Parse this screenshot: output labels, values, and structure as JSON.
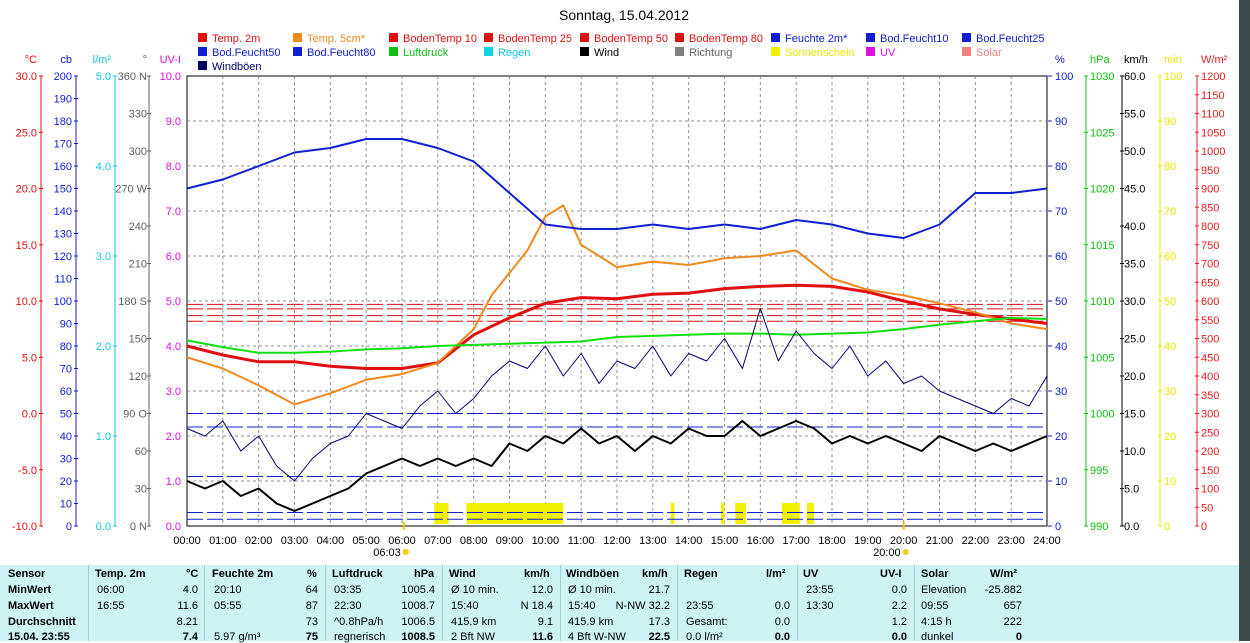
{
  "title": "Sonntag, 15.04.2012",
  "legend": [
    {
      "label": "Temp. 2m",
      "color": "#e01010"
    },
    {
      "label": "Temp. 5cm*",
      "color": "#f08a20"
    },
    {
      "label": "BodenTemp 10",
      "color": "#e01010"
    },
    {
      "label": "BodenTemp 25",
      "color": "#e01010"
    },
    {
      "label": "BodenTemp 50",
      "color": "#e01010"
    },
    {
      "label": "BodenTemp 80",
      "color": "#e01010"
    },
    {
      "label": "Feuchte 2m*",
      "color": "#1020d0"
    },
    {
      "label": "Bod.Feucht10",
      "color": "#1020d0"
    },
    {
      "label": "Bod.Feucht25",
      "color": "#1020d0"
    },
    {
      "label": "Bod.Feucht50",
      "color": "#1020d0"
    },
    {
      "label": "Bod.Feucht80",
      "color": "#1020d0"
    },
    {
      "label": "Luftdruck",
      "color": "#10c010"
    },
    {
      "label": "Regen",
      "color": "#10d8e0"
    },
    {
      "label": "Wind",
      "color": "#000000"
    },
    {
      "label": "Richtung",
      "color": "#808080"
    },
    {
      "label": "Sonnenschein",
      "color": "#f0f000"
    },
    {
      "label": "UV",
      "color": "#e010e0"
    },
    {
      "label": "Solar",
      "color": "#f08080"
    },
    {
      "label": "Windböen",
      "color": "#000060"
    }
  ],
  "axes": {
    "celsius": {
      "unit": "°C",
      "color": "#e01010",
      "ticks": [
        "30.0",
        "25.0",
        "20.0",
        "15.0",
        "10.0",
        "5.0",
        "0.0",
        "-5.0",
        "-10.0"
      ]
    },
    "cb": {
      "unit": "cb",
      "color": "#1020d0",
      "ticks": [
        "200",
        "190",
        "180",
        "170",
        "160",
        "150",
        "140",
        "130",
        "120",
        "110",
        "100",
        "90",
        "80",
        "70",
        "60",
        "50",
        "40",
        "30",
        "20",
        "10",
        "0"
      ]
    },
    "rain": {
      "unit": "l/m²",
      "color": "#10c8e0",
      "ticks": [
        "5.0",
        "4.0",
        "3.0",
        "2.0",
        "1.0",
        "0.0"
      ]
    },
    "direction": {
      "unit": "°",
      "color": "#606060",
      "ticks": [
        "360 N",
        "330",
        "300",
        "270 W",
        "240",
        "210",
        "180 S",
        "150",
        "120",
        "90  O",
        "60",
        "30",
        "0  N"
      ]
    },
    "uv": {
      "unit": "UV-I",
      "color": "#e010e0",
      "ticks": [
        "10.0",
        "9.0",
        "8.0",
        "7.0",
        "6.0",
        "5.0",
        "4.0",
        "3.0",
        "2.0",
        "1.0",
        "0.0"
      ]
    },
    "humidity": {
      "unit": "%",
      "color": "#1020d0",
      "ticks": [
        "100",
        "90",
        "80",
        "70",
        "60",
        "50",
        "40",
        "30",
        "20",
        "10",
        "0"
      ]
    },
    "pressure": {
      "unit": "hPa",
      "color": "#10c010",
      "ticks": [
        "1030",
        "1025",
        "1020",
        "1015",
        "1010",
        "1005",
        "1000",
        "995",
        "990"
      ]
    },
    "wind": {
      "unit": "km/h",
      "color": "#000000",
      "ticks": [
        "60.0",
        "55.0",
        "50.0",
        "45.0",
        "40.0",
        "35.0",
        "30.0",
        "25.0",
        "20.0",
        "15.0",
        "10.0",
        "5.0",
        "0.0"
      ]
    },
    "sun": {
      "unit": "min",
      "color": "#e8e800",
      "ticks": [
        "100",
        "90",
        "80",
        "70",
        "60",
        "50",
        "40",
        "30",
        "20",
        "10",
        "0"
      ]
    },
    "solar": {
      "unit": "W/m²",
      "color": "#e02020",
      "ticks": [
        "1200",
        "1150",
        "1100",
        "1050",
        "1000",
        "950",
        "900",
        "850",
        "800",
        "750",
        "700",
        "650",
        "600",
        "550",
        "500",
        "450",
        "400",
        "350",
        "300",
        "250",
        "200",
        "150",
        "100",
        "50",
        "0"
      ]
    }
  },
  "x_ticks": [
    "00:00",
    "01:00",
    "02:00",
    "03:00",
    "04:00",
    "05:00",
    "06:00",
    "07:00",
    "08:00",
    "09:00",
    "10:00",
    "11:00",
    "12:00",
    "13:00",
    "14:00",
    "15:00",
    "16:00",
    "17:00",
    "18:00",
    "19:00",
    "20:00",
    "21:00",
    "22:00",
    "23:00",
    "24:00"
  ],
  "sunrise": "06:03",
  "sunset": "20:00",
  "chart_data": {
    "type": "line",
    "x_unit": "hour",
    "series": [
      {
        "name": "Temp. 2m",
        "axis": "celsius",
        "x": [
          0,
          1,
          2,
          3,
          4,
          5,
          5.5,
          6,
          7,
          8,
          9,
          10,
          11,
          12,
          13,
          14,
          15,
          16,
          17,
          18,
          19,
          20,
          21,
          22,
          23,
          24
        ],
        "y": [
          6.0,
          5.2,
          4.6,
          4.6,
          4.2,
          4.0,
          4.0,
          4.0,
          4.5,
          7.0,
          8.5,
          9.8,
          10.3,
          10.2,
          10.6,
          10.7,
          11.1,
          11.3,
          11.4,
          11.3,
          10.8,
          10.0,
          9.3,
          8.8,
          8.4,
          8.0
        ]
      },
      {
        "name": "Temp. 5cm*",
        "axis": "celsius",
        "x": [
          0,
          1,
          2,
          3,
          4,
          5,
          6,
          7,
          8,
          8.5,
          9,
          9.5,
          10,
          10.5,
          11,
          12,
          13,
          14,
          15,
          16,
          17,
          18,
          19,
          20,
          21,
          22,
          23,
          24
        ],
        "y": [
          5.0,
          4.0,
          2.5,
          0.8,
          1.8,
          3.0,
          3.5,
          4.5,
          7.5,
          10.5,
          12.5,
          14.5,
          17.5,
          18.5,
          15.0,
          13.0,
          13.5,
          13.2,
          13.8,
          14.0,
          14.5,
          12.0,
          11.0,
          10.5,
          9.8,
          9.0,
          8.0,
          7.5
        ]
      },
      {
        "name": "Feuchte 2m*",
        "axis": "humidity",
        "x": [
          0,
          1,
          2,
          3,
          4,
          5,
          6,
          7,
          8,
          9,
          10,
          11,
          12,
          13,
          14,
          15,
          16,
          17,
          18,
          19,
          20,
          21,
          22,
          23,
          24
        ],
        "y": [
          75,
          77,
          80,
          83,
          84,
          86,
          86,
          84,
          81,
          74,
          67,
          66,
          66,
          67,
          66,
          67,
          66,
          68,
          67,
          65,
          64,
          67,
          74,
          74,
          75
        ]
      },
      {
        "name": "Luftdruck",
        "axis": "pressure",
        "x": [
          0,
          1,
          2,
          3,
          4,
          5,
          6,
          7,
          8,
          9,
          10,
          11,
          12,
          13,
          14,
          15,
          16,
          17,
          18,
          19,
          20,
          21,
          22,
          23,
          24
        ],
        "y": [
          1006.5,
          1005.9,
          1005.4,
          1005.4,
          1005.5,
          1005.7,
          1005.8,
          1006.0,
          1006.1,
          1006.2,
          1006.3,
          1006.4,
          1006.8,
          1006.9,
          1007.0,
          1007.1,
          1007.1,
          1007.0,
          1007.1,
          1007.2,
          1007.5,
          1007.9,
          1008.2,
          1008.5,
          1008.4
        ]
      },
      {
        "name": "Wind",
        "axis": "wind",
        "x": [
          0,
          0.5,
          1,
          1.5,
          2,
          2.5,
          3,
          3.5,
          4,
          4.5,
          5,
          5.5,
          6,
          6.5,
          7,
          7.5,
          8,
          8.5,
          9,
          9.5,
          10,
          10.5,
          11,
          11.5,
          12,
          12.5,
          13,
          13.5,
          14,
          14.5,
          15,
          15.5,
          16,
          16.5,
          17,
          17.5,
          18,
          18.5,
          19,
          19.5,
          20,
          20.5,
          21,
          21.5,
          22,
          22.5,
          23,
          23.5,
          24
        ],
        "y": [
          6,
          5,
          6,
          4,
          5,
          3,
          2,
          3,
          4,
          5,
          7,
          8,
          9,
          8,
          9,
          8,
          9,
          8,
          11,
          10,
          12,
          11,
          13,
          11,
          12,
          10,
          12,
          11,
          13,
          12,
          12,
          14,
          12,
          13,
          14,
          13,
          11,
          12,
          11,
          12,
          11,
          10,
          12,
          11,
          10,
          11,
          10,
          11,
          12
        ]
      },
      {
        "name": "Windböen",
        "axis": "wind",
        "x": [
          0,
          0.5,
          1,
          1.5,
          2,
          2.5,
          3,
          3.5,
          4,
          4.5,
          5,
          5.5,
          6,
          6.5,
          7,
          7.5,
          8,
          8.5,
          9,
          9.5,
          10,
          10.5,
          11,
          11.5,
          12,
          12.5,
          13,
          13.5,
          14,
          14.5,
          15,
          15.5,
          16,
          16.5,
          17,
          17.5,
          18,
          18.5,
          19,
          19.5,
          20,
          20.5,
          21,
          21.5,
          22,
          22.5,
          23,
          23.5,
          24
        ],
        "y": [
          13,
          12,
          14,
          10,
          12,
          8,
          6,
          9,
          11,
          12,
          15,
          14,
          13,
          16,
          18,
          15,
          17,
          20,
          22,
          21,
          24,
          20,
          23,
          19,
          22,
          21,
          24,
          20,
          23,
          22,
          25,
          21,
          29,
          22,
          26,
          23,
          21,
          24,
          20,
          22,
          19,
          20,
          18,
          17,
          16,
          15,
          17,
          16,
          20
        ]
      }
    ],
    "sunshine_blocks": [
      [
        6.9,
        7.3
      ],
      [
        7.8,
        8.4
      ],
      [
        8.4,
        9.0
      ],
      [
        9.0,
        10.5
      ],
      [
        13.5,
        13.6
      ],
      [
        14.9,
        15.0
      ],
      [
        15.3,
        15.6
      ],
      [
        16.6,
        17.1
      ],
      [
        17.3,
        17.5
      ]
    ],
    "dashed_levels": [
      {
        "axis": "celsius",
        "y": 9.7,
        "color": "#d01010"
      },
      {
        "axis": "celsius",
        "y": 9.3,
        "color": "#d01010"
      },
      {
        "axis": "celsius",
        "y": 8.7,
        "color": "#d01010"
      },
      {
        "axis": "celsius",
        "y": 8.2,
        "color": "#d01010"
      },
      {
        "axis": "humidity",
        "y": 25,
        "color": "#1020d0"
      },
      {
        "axis": "humidity",
        "y": 22,
        "color": "#1020d0"
      },
      {
        "axis": "humidity",
        "y": 11,
        "color": "#1020d0"
      },
      {
        "axis": "humidity",
        "y": 3,
        "color": "#1020d0"
      },
      {
        "axis": "humidity",
        "y": 1.5,
        "color": "#1020d0"
      }
    ]
  },
  "stats": {
    "headers": {
      "sensor": "Sensor",
      "temp": "Temp. 2m",
      "temp_u": "°C",
      "feuchte": "Feuchte 2m",
      "feuchte_u": "%",
      "luft": "Luftdruck",
      "luft_u": "hPa",
      "wind": "Wind",
      "wind_u": "km/h",
      "boeen": "Windböen",
      "boeen_u": "km/h",
      "regen": "Regen",
      "regen_u": "l/m²",
      "uv": "UV",
      "uv_u": "UV-I",
      "solar": "Solar",
      "solar_u": "W/m²"
    },
    "rows": [
      {
        "label": "MinWert",
        "temp_t": "06:00",
        "temp_v": "4.0",
        "feuchte_t": "20:10",
        "feuchte_v": "64",
        "luft_t": "03:35",
        "luft_v": "1005.4",
        "wind_t": "Ø 10 min.",
        "wind_v": "12.0",
        "boeen_t": "Ø 10 min.",
        "boeen_v": "21.7",
        "regen_t": "",
        "regen_v": "",
        "uv_t": "23:55",
        "uv_v": "0.0",
        "solar_t": "Elevation",
        "solar_v": "-25.882"
      },
      {
        "label": "MaxWert",
        "temp_t": "16:55",
        "temp_v": "11.6",
        "feuchte_t": "05:55",
        "feuchte_v": "87",
        "luft_t": "22:30",
        "luft_v": "1008.7",
        "wind_t": "15:40",
        "wind_v": "N 18.4",
        "boeen_t": "15:40",
        "boeen_v": "N-NW 32.2",
        "regen_t": "23:55",
        "regen_v": "0.0",
        "uv_t": "13:30",
        "uv_v": "2.2",
        "solar_t": "09:55",
        "solar_v": "657"
      },
      {
        "label": "Durchschnitt",
        "temp_t": "",
        "temp_v": "8.21",
        "feuchte_t": "",
        "feuchte_v": "73",
        "luft_t": "^0.8hPa/h",
        "luft_v": "1006.5",
        "wind_t": "415.9 km",
        "wind_v": "9.1",
        "boeen_t": "415.9 km",
        "boeen_v": "17.3",
        "regen_t": "Gesamt:",
        "regen_v": "0.0",
        "uv_t": "",
        "uv_v": "1.2",
        "solar_t": "4:15 h",
        "solar_v": "222"
      },
      {
        "label": "15.04. 23:55",
        "temp_t": "",
        "temp_v": "7.4",
        "feuchte_t": "5.97 g/m³",
        "feuchte_v": "75",
        "luft_t": "regnerisch",
        "luft_v": "1008.5",
        "wind_t": "2 Bft NW",
        "wind_v": "11.6",
        "boeen_t": "4 Bft W-NW",
        "boeen_v": "22.5",
        "regen_t": "0.0 l/m²",
        "regen_v": "0.0",
        "uv_t": "",
        "uv_v": "0.0",
        "solar_t": "dunkel",
        "solar_v": "0"
      }
    ]
  }
}
